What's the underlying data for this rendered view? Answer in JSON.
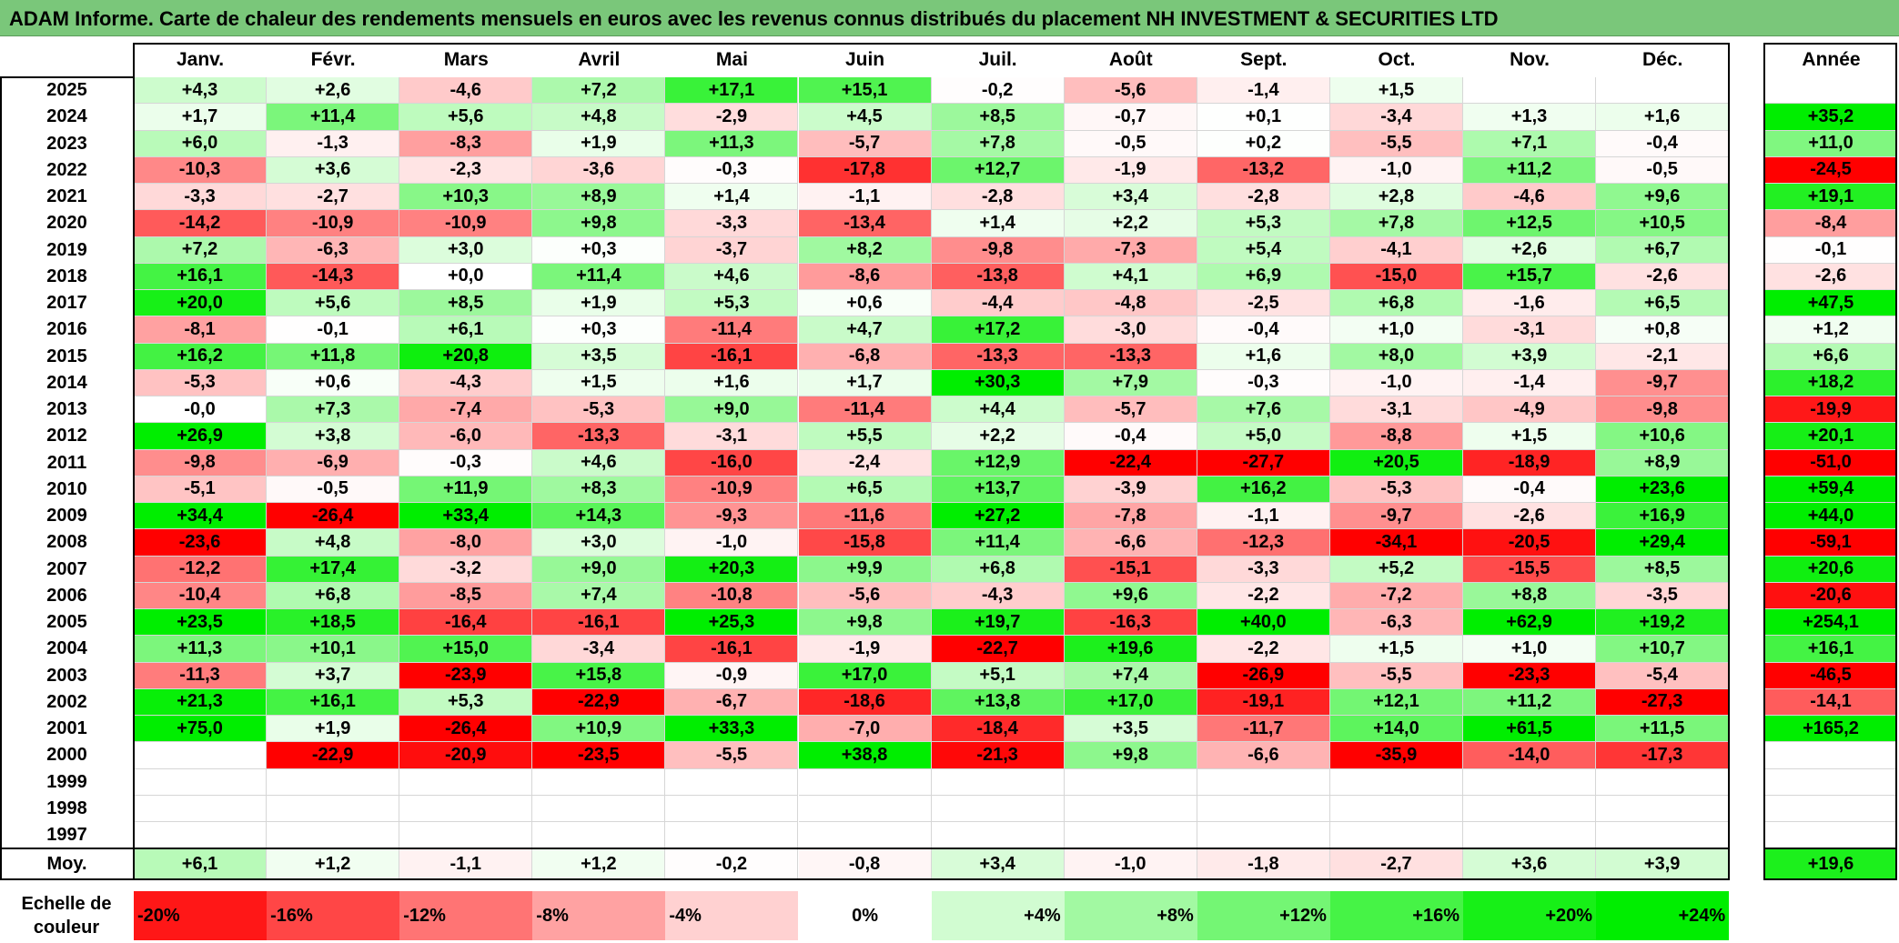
{
  "title": "ADAM Informe. Carte de chaleur des rendements mensuels en euros avec les revenus connus distribués du placement NH INVESTMENT & SECURITIES LTD",
  "chart_data": {
    "type": "heatmap",
    "months": [
      "Janv.",
      "Févr.",
      "Mars",
      "Avril",
      "Mai",
      "Juin",
      "Juil.",
      "Août",
      "Sept.",
      "Oct.",
      "Nov.",
      "Déc."
    ],
    "annual_header": "Année",
    "avg_label": "Moy.",
    "rows": [
      {
        "year": "2025",
        "values": [
          "+4,3",
          "+2,6",
          "-4,6",
          "+7,2",
          "+17,1",
          "+15,1",
          "-0,2",
          "-5,6",
          "-1,4",
          "+1,5",
          "",
          ""
        ],
        "annual": ""
      },
      {
        "year": "2024",
        "values": [
          "+1,7",
          "+11,4",
          "+5,6",
          "+4,8",
          "-2,9",
          "+4,5",
          "+8,5",
          "-0,7",
          "+0,1",
          "-3,4",
          "+1,3",
          "+1,6"
        ],
        "annual": "+35,2"
      },
      {
        "year": "2023",
        "values": [
          "+6,0",
          "-1,3",
          "-8,3",
          "+1,9",
          "+11,3",
          "-5,7",
          "+7,8",
          "-0,5",
          "+0,2",
          "-5,5",
          "+7,1",
          "-0,4"
        ],
        "annual": "+11,0"
      },
      {
        "year": "2022",
        "values": [
          "-10,3",
          "+3,6",
          "-2,3",
          "-3,6",
          "-0,3",
          "-17,8",
          "+12,7",
          "-1,9",
          "-13,2",
          "-1,0",
          "+11,2",
          "-0,5"
        ],
        "annual": "-24,5"
      },
      {
        "year": "2021",
        "values": [
          "-3,3",
          "-2,7",
          "+10,3",
          "+8,9",
          "+1,4",
          "-1,1",
          "-2,8",
          "+3,4",
          "-2,8",
          "+2,8",
          "-4,6",
          "+9,6"
        ],
        "annual": "+19,1"
      },
      {
        "year": "2020",
        "values": [
          "-14,2",
          "-10,9",
          "-10,9",
          "+9,8",
          "-3,3",
          "-13,4",
          "+1,4",
          "+2,2",
          "+5,3",
          "+7,8",
          "+12,5",
          "+10,5"
        ],
        "annual": "-8,4"
      },
      {
        "year": "2019",
        "values": [
          "+7,2",
          "-6,3",
          "+3,0",
          "+0,3",
          "-3,7",
          "+8,2",
          "-9,8",
          "-7,3",
          "+5,4",
          "-4,1",
          "+2,6",
          "+6,7"
        ],
        "annual": "-0,1"
      },
      {
        "year": "2018",
        "values": [
          "+16,1",
          "-14,3",
          "+0,0",
          "+11,4",
          "+4,6",
          "-8,6",
          "-13,8",
          "+4,1",
          "+6,9",
          "-15,0",
          "+15,7",
          "-2,6"
        ],
        "annual": "-2,6"
      },
      {
        "year": "2017",
        "values": [
          "+20,0",
          "+5,6",
          "+8,5",
          "+1,9",
          "+5,3",
          "+0,6",
          "-4,4",
          "-4,8",
          "-2,5",
          "+6,8",
          "-1,6",
          "+6,5"
        ],
        "annual": "+47,5"
      },
      {
        "year": "2016",
        "values": [
          "-8,1",
          "-0,1",
          "+6,1",
          "+0,3",
          "-11,4",
          "+4,7",
          "+17,2",
          "-3,0",
          "-0,4",
          "+1,0",
          "-3,1",
          "+0,8"
        ],
        "annual": "+1,2"
      },
      {
        "year": "2015",
        "values": [
          "+16,2",
          "+11,8",
          "+20,8",
          "+3,5",
          "-16,1",
          "-6,8",
          "-13,3",
          "-13,3",
          "+1,6",
          "+8,0",
          "+3,9",
          "-2,1"
        ],
        "annual": "+6,6"
      },
      {
        "year": "2014",
        "values": [
          "-5,3",
          "+0,6",
          "-4,3",
          "+1,5",
          "+1,6",
          "+1,7",
          "+30,3",
          "+7,9",
          "-0,3",
          "-1,0",
          "-1,4",
          "-9,7"
        ],
        "annual": "+18,2"
      },
      {
        "year": "2013",
        "values": [
          "-0,0",
          "+7,3",
          "-7,4",
          "-5,3",
          "+9,0",
          "-11,4",
          "+4,4",
          "-5,7",
          "+7,6",
          "-3,1",
          "-4,9",
          "-9,8"
        ],
        "annual": "-19,9"
      },
      {
        "year": "2012",
        "values": [
          "+26,9",
          "+3,8",
          "-6,0",
          "-13,3",
          "-3,1",
          "+5,5",
          "+2,2",
          "-0,4",
          "+5,0",
          "-8,8",
          "+1,5",
          "+10,6"
        ],
        "annual": "+20,1"
      },
      {
        "year": "2011",
        "values": [
          "-9,8",
          "-6,9",
          "-0,3",
          "+4,6",
          "-16,0",
          "-2,4",
          "+12,9",
          "-22,4",
          "-27,7",
          "+20,5",
          "-18,9",
          "+8,9"
        ],
        "annual": "-51,0"
      },
      {
        "year": "2010",
        "values": [
          "-5,1",
          "-0,5",
          "+11,9",
          "+8,3",
          "-10,9",
          "+6,5",
          "+13,7",
          "-3,9",
          "+16,2",
          "-5,3",
          "-0,4",
          "+23,6"
        ],
        "annual": "+59,4"
      },
      {
        "year": "2009",
        "values": [
          "+34,4",
          "-26,4",
          "+33,4",
          "+14,3",
          "-9,3",
          "-11,6",
          "+27,2",
          "-7,8",
          "-1,1",
          "-9,7",
          "-2,6",
          "+16,9"
        ],
        "annual": "+44,0"
      },
      {
        "year": "2008",
        "values": [
          "-23,6",
          "+4,8",
          "-8,0",
          "+3,0",
          "-1,0",
          "-15,8",
          "+11,4",
          "-6,6",
          "-12,3",
          "-34,1",
          "-20,5",
          "+29,4"
        ],
        "annual": "-59,1"
      },
      {
        "year": "2007",
        "values": [
          "-12,2",
          "+17,4",
          "-3,2",
          "+9,0",
          "+20,3",
          "+9,9",
          "+6,8",
          "-15,1",
          "-3,3",
          "+5,2",
          "-15,5",
          "+8,5"
        ],
        "annual": "+20,6"
      },
      {
        "year": "2006",
        "values": [
          "-10,4",
          "+6,8",
          "-8,5",
          "+7,4",
          "-10,8",
          "-5,6",
          "-4,3",
          "+9,6",
          "-2,2",
          "-7,2",
          "+8,8",
          "-3,5"
        ],
        "annual": "-20,6"
      },
      {
        "year": "2005",
        "values": [
          "+23,5",
          "+18,5",
          "-16,4",
          "-16,1",
          "+25,3",
          "+9,8",
          "+19,7",
          "-16,3",
          "+40,0",
          "-6,3",
          "+62,9",
          "+19,2"
        ],
        "annual": "+254,1"
      },
      {
        "year": "2004",
        "values": [
          "+11,3",
          "+10,1",
          "+15,0",
          "-3,4",
          "-16,1",
          "-1,9",
          "-22,7",
          "+19,6",
          "-2,2",
          "+1,5",
          "+1,0",
          "+10,7"
        ],
        "annual": "+16,1"
      },
      {
        "year": "2003",
        "values": [
          "-11,3",
          "+3,7",
          "-23,9",
          "+15,8",
          "-0,9",
          "+17,0",
          "+5,1",
          "+7,4",
          "-26,9",
          "-5,5",
          "-23,3",
          "-5,4"
        ],
        "annual": "-46,5"
      },
      {
        "year": "2002",
        "values": [
          "+21,3",
          "+16,1",
          "+5,3",
          "-22,9",
          "-6,7",
          "-18,6",
          "+13,8",
          "+17,0",
          "-19,1",
          "+12,1",
          "+11,2",
          "-27,3"
        ],
        "annual": "-14,1"
      },
      {
        "year": "2001",
        "values": [
          "+75,0",
          "+1,9",
          "-26,4",
          "+10,9",
          "+33,3",
          "-7,0",
          "-18,4",
          "+3,5",
          "-11,7",
          "+14,0",
          "+61,5",
          "+11,5"
        ],
        "annual": "+165,2"
      },
      {
        "year": "2000",
        "values": [
          "",
          "-22,9",
          "-20,9",
          "-23,5",
          "-5,5",
          "+38,8",
          "-21,3",
          "+9,8",
          "-6,6",
          "-35,9",
          "-14,0",
          "-17,3"
        ],
        "annual": ""
      },
      {
        "year": "1999",
        "values": [
          "",
          "",
          "",
          "",
          "",
          "",
          "",
          "",
          "",
          "",
          "",
          ""
        ],
        "annual": ""
      },
      {
        "year": "1998",
        "values": [
          "",
          "",
          "",
          "",
          "",
          "",
          "",
          "",
          "",
          "",
          "",
          ""
        ],
        "annual": ""
      },
      {
        "year": "1997",
        "values": [
          "",
          "",
          "",
          "",
          "",
          "",
          "",
          "",
          "",
          "",
          "",
          ""
        ],
        "annual": ""
      }
    ],
    "averages": [
      "+6,1",
      "+1,2",
      "-1,1",
      "+1,2",
      "-0,2",
      "-0,8",
      "+3,4",
      "-1,0",
      "-1,8",
      "-2,7",
      "+3,6",
      "+3,9"
    ],
    "annual_average": "+19,6",
    "scale_label": "Echelle de couleur",
    "scale": [
      "-20%",
      "-16%",
      "-12%",
      "-8%",
      "-4%",
      "0%",
      "+4%",
      "+8%",
      "+12%",
      "+16%",
      "+20%",
      "+24%"
    ],
    "scale_values": [
      -20,
      -16,
      -12,
      -8,
      -4,
      0,
      4,
      8,
      12,
      16,
      20,
      24
    ],
    "colors": {
      "negative": "#ff0000",
      "neutral": "#ffffff",
      "positive": "#00ee00",
      "title_bar": "#7ac77a"
    }
  }
}
